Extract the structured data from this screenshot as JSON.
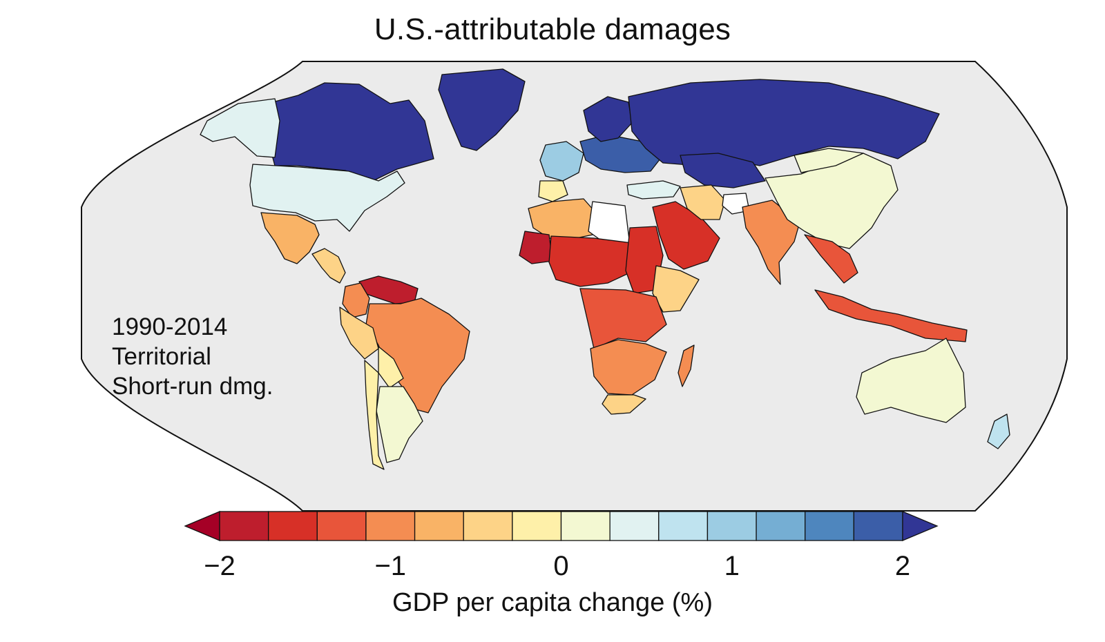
{
  "title": "U.S.-attributable damages",
  "annotation": {
    "line1": "1990-2014",
    "line2": "Territorial",
    "line3": "Short-run dmg."
  },
  "colorbar": {
    "label": "GDP per capita change (%)",
    "ticks": [
      "−2",
      "−1",
      "0",
      "1",
      "2"
    ],
    "tick_values": [
      -2,
      -1,
      0,
      1,
      2
    ],
    "min": -2,
    "max": 2,
    "bin_width": 0.25,
    "extend": "both",
    "under_color": "#a50026",
    "over_color": "#313695",
    "colors": [
      "#be1e2d",
      "#d73027",
      "#e8553a",
      "#f48d52",
      "#f9b366",
      "#fdd387",
      "#fef0a9",
      "#f3f8d2",
      "#e1f2f1",
      "#bfe3ef",
      "#9ccce3",
      "#75aed3",
      "#4e86be",
      "#3b5ea8"
    ]
  },
  "map": {
    "ocean_color": "#ebebeb",
    "no_data_color": "#ffffff",
    "regions": [
      {
        "name": "Canada",
        "value": 2.2
      },
      {
        "name": "Alaska",
        "value": 0.1
      },
      {
        "name": "Greenland",
        "value": 2.2
      },
      {
        "name": "United States",
        "value": 0.1
      },
      {
        "name": "Mexico",
        "value": -0.9
      },
      {
        "name": "Central America",
        "value": -0.7
      },
      {
        "name": "Venezuela",
        "value": -1.8
      },
      {
        "name": "Colombia",
        "value": -1.1
      },
      {
        "name": "Brazil",
        "value": -1.1
      },
      {
        "name": "Peru",
        "value": -0.6
      },
      {
        "name": "Bolivia",
        "value": -0.4
      },
      {
        "name": "Argentina",
        "value": -0.2
      },
      {
        "name": "Chile",
        "value": -0.3
      },
      {
        "name": "Western Europe",
        "value": 0.7
      },
      {
        "name": "Central Europe",
        "value": 1.3
      },
      {
        "name": "Scandinavia",
        "value": 2.2
      },
      {
        "name": "Russia",
        "value": 2.2
      },
      {
        "name": "Kazakhstan",
        "value": 2.2
      },
      {
        "name": "Iberia",
        "value": -0.3
      },
      {
        "name": "Turkey",
        "value": 0.1
      },
      {
        "name": "North Africa",
        "value": -0.8
      },
      {
        "name": "Libya",
        "value": null
      },
      {
        "name": "Mauritania",
        "value": -1.9
      },
      {
        "name": "Sahel",
        "value": -1.6
      },
      {
        "name": "Sudan",
        "value": -1.6
      },
      {
        "name": "Horn of Africa",
        "value": -0.6
      },
      {
        "name": "Central Africa",
        "value": -1.3
      },
      {
        "name": "Southern Africa",
        "value": -1.1
      },
      {
        "name": "South Africa",
        "value": -0.7
      },
      {
        "name": "Madagascar",
        "value": -1.1
      },
      {
        "name": "Arabian Peninsula",
        "value": -1.6
      },
      {
        "name": "Iran",
        "value": -0.7
      },
      {
        "name": "Afghanistan",
        "value": null
      },
      {
        "name": "India",
        "value": -1.2
      },
      {
        "name": "China",
        "value": -0.1
      },
      {
        "name": "Mongolia",
        "value": -0.1
      },
      {
        "name": "Southeast Asia",
        "value": -1.4
      },
      {
        "name": "Indonesia",
        "value": -1.3
      },
      {
        "name": "Australia",
        "value": -0.2
      },
      {
        "name": "New Zealand",
        "value": 0.3
      }
    ]
  }
}
